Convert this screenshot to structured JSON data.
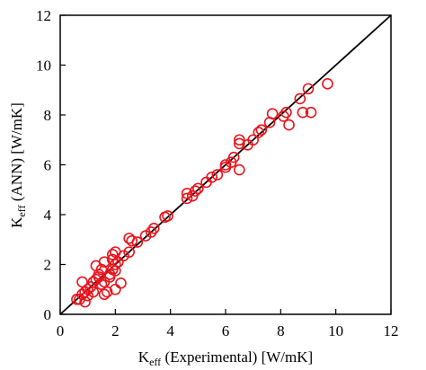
{
  "chart_data": {
    "type": "scatter",
    "xlabel": {
      "main": "K",
      "sub": "eff",
      "rest": " (Experimental) [W/mK]"
    },
    "ylabel": {
      "main": "K",
      "sub": "eff",
      "rest": " (ANN) [W/mK]"
    },
    "xlim": [
      0,
      12
    ],
    "ylim": [
      0,
      12
    ],
    "xticks": [
      0,
      2,
      4,
      6,
      8,
      10,
      12
    ],
    "yticks": [
      0,
      2,
      4,
      6,
      8,
      10,
      12
    ],
    "reference_line": "y = x",
    "series": [
      {
        "color": "#e8141c",
        "x": [
          9.7,
          9.0,
          8.7,
          8.8,
          9.1,
          8.2,
          8.1,
          8.3,
          7.7,
          7.6,
          7.3,
          7.2,
          7.0,
          6.8,
          6.5,
          6.5,
          6.5,
          6.3,
          6.2,
          6.0,
          6.0,
          5.7,
          5.5,
          5.3,
          5.0,
          4.9,
          4.6,
          4.6,
          4.8,
          3.9,
          3.8,
          3.4,
          3.3,
          3.1,
          2.8,
          2.6,
          2.5,
          2.5,
          2.0,
          2.3,
          2.1,
          1.9,
          1.9,
          2.0,
          1.9,
          2.0,
          1.8,
          1.8,
          1.6,
          1.5,
          1.3,
          1.6,
          1.5,
          1.4,
          1.3,
          1.2,
          1.1,
          1.0,
          0.9,
          0.8,
          0.7,
          0.9,
          0.8,
          1.2,
          1.6,
          1.7,
          2.0,
          2.2,
          1.0,
          0.6,
          1.4
        ],
        "y": [
          9.25,
          9.05,
          8.65,
          8.1,
          8.1,
          8.1,
          7.95,
          7.6,
          8.05,
          7.7,
          7.4,
          7.3,
          7.0,
          6.8,
          7.0,
          6.85,
          5.8,
          6.3,
          6.1,
          6.0,
          5.9,
          5.6,
          5.5,
          5.3,
          5.05,
          4.95,
          4.85,
          4.65,
          4.75,
          3.95,
          3.9,
          3.45,
          3.3,
          3.15,
          2.9,
          2.95,
          3.05,
          2.5,
          2.5,
          2.35,
          2.1,
          2.4,
          2.2,
          2.0,
          1.8,
          1.75,
          1.6,
          1.5,
          2.1,
          1.8,
          1.95,
          1.3,
          1.2,
          1.5,
          1.4,
          1.3,
          1.1,
          1.0,
          0.9,
          0.8,
          0.6,
          0.5,
          1.3,
          0.9,
          0.8,
          0.9,
          1.0,
          1.25,
          0.75,
          0.6,
          1.6
        ]
      }
    ]
  }
}
